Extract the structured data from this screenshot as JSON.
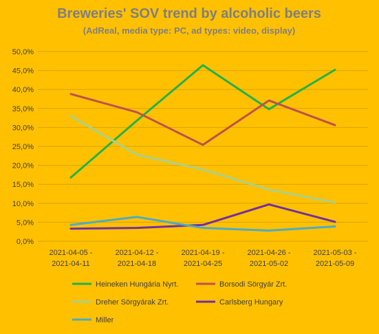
{
  "chart_data": {
    "type": "line",
    "title": "Breweries' SOV trend by alcoholic beers",
    "subtitle": "(AdReal,  media type: PC, ad types: video, display)",
    "categories": [
      [
        "2021-04-05 -",
        "2021-04-11"
      ],
      [
        "2021-04-12 -",
        "2021-04-18"
      ],
      [
        "2021-04-19 -",
        "2021-04-25"
      ],
      [
        "2021-04-26 -",
        "2021-05-02"
      ],
      [
        "2021-05-03 -",
        "2021-05-09"
      ]
    ],
    "ylim": [
      0,
      50
    ],
    "ytick_step": 5,
    "ytick_labels": [
      "0,0%",
      "5,0%",
      "10,0%",
      "15,0%",
      "20,0%",
      "25,0%",
      "30,0%",
      "35,0%",
      "40,0%",
      "45,0%",
      "50,0%"
    ],
    "grid": true,
    "legend_position": "bottom",
    "series": [
      {
        "name": "Heineken Hungária Nyrt.",
        "color": "#22b14c",
        "values": [
          16.8,
          31.8,
          46.4,
          34.8,
          45.2
        ]
      },
      {
        "name": "Borsodi Sörgyár Zrt.",
        "color": "#c0504d",
        "values": [
          38.8,
          34.0,
          25.4,
          37.1,
          30.6
        ]
      },
      {
        "name": "Dreher Sörgyárak Zrt.",
        "color": "#a9d18e",
        "values": [
          33.0,
          22.8,
          18.9,
          13.6,
          10.2
        ]
      },
      {
        "name": "Carlsberg Hungary",
        "color": "#7030a0",
        "values": [
          3.3,
          3.5,
          4.3,
          9.7,
          5.1
        ]
      },
      {
        "name": "Miller",
        "color": "#4bacc6",
        "values": [
          4.3,
          6.4,
          3.5,
          2.8,
          3.9
        ]
      }
    ]
  }
}
